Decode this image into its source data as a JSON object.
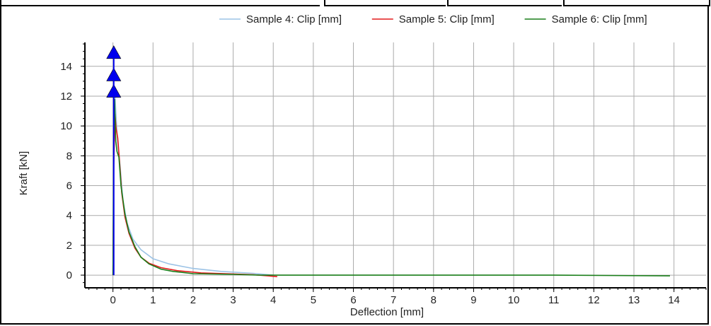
{
  "chart_data": {
    "type": "line",
    "xlabel": "Deflection [mm]",
    "ylabel": "Kraft [kN]",
    "xlim": [
      -0.7,
      14.8
    ],
    "ylim": [
      -0.85,
      15.6
    ],
    "xticks": [
      "0",
      "1",
      "2",
      "3",
      "4",
      "5",
      "6",
      "7",
      "8",
      "9",
      "10",
      "11",
      "12",
      "13",
      "14"
    ],
    "yticks": [
      "0",
      "2",
      "4",
      "6",
      "8",
      "10",
      "12",
      "14"
    ],
    "grid": true,
    "legend_position": "top",
    "series": [
      {
        "name": "Sample 4: Clip [mm]",
        "color": "#9cc3e6",
        "x": [
          0,
          0.02,
          0.05,
          0.08,
          0.12,
          0.18,
          0.25,
          0.35,
          0.5,
          0.7,
          1.0,
          1.4,
          2.0,
          2.7,
          3.5,
          4.0
        ],
        "y": [
          0,
          10.2,
          12.1,
          10.5,
          8.8,
          7.3,
          5.0,
          3.5,
          2.4,
          1.7,
          1.1,
          0.75,
          0.45,
          0.25,
          0.12,
          0.0
        ]
      },
      {
        "name": "Sample 5: Clip [mm]",
        "color": "#e41a1c",
        "x": [
          0,
          0.02,
          0.05,
          0.08,
          0.12,
          0.16,
          0.22,
          0.3,
          0.4,
          0.55,
          0.7,
          0.9,
          1.2,
          1.6,
          2.2,
          3.0,
          3.5,
          4.1
        ],
        "y": [
          0,
          7.4,
          10.8,
          9.8,
          9.2,
          7.8,
          5.5,
          3.9,
          2.8,
          1.8,
          1.2,
          0.8,
          0.5,
          0.3,
          0.15,
          0.08,
          0.03,
          -0.1
        ]
      },
      {
        "name": "Sample 6: Clip [mm]",
        "color": "#1a7f1a",
        "x": [
          0,
          0.02,
          0.04,
          0.07,
          0.1,
          0.15,
          0.2,
          0.3,
          0.4,
          0.55,
          0.7,
          0.9,
          1.2,
          1.5,
          2.0,
          3.0,
          3.7,
          5.0,
          8.0,
          11.0,
          13.9
        ],
        "y": [
          0,
          9.5,
          11.8,
          9.0,
          8.3,
          7.9,
          6.0,
          4.1,
          2.9,
          1.9,
          1.2,
          0.75,
          0.4,
          0.25,
          0.1,
          0.05,
          0.0,
          0.0,
          0.0,
          0.0,
          -0.05
        ]
      }
    ],
    "markers": [
      {
        "x": 0.02,
        "y": 14.9
      },
      {
        "x": 0.02,
        "y": 13.4
      },
      {
        "x": 0.02,
        "y": 12.3
      }
    ]
  },
  "colors": {
    "marker": "#0000ee",
    "grid": "#aaaaaa",
    "frame": "#000000"
  }
}
